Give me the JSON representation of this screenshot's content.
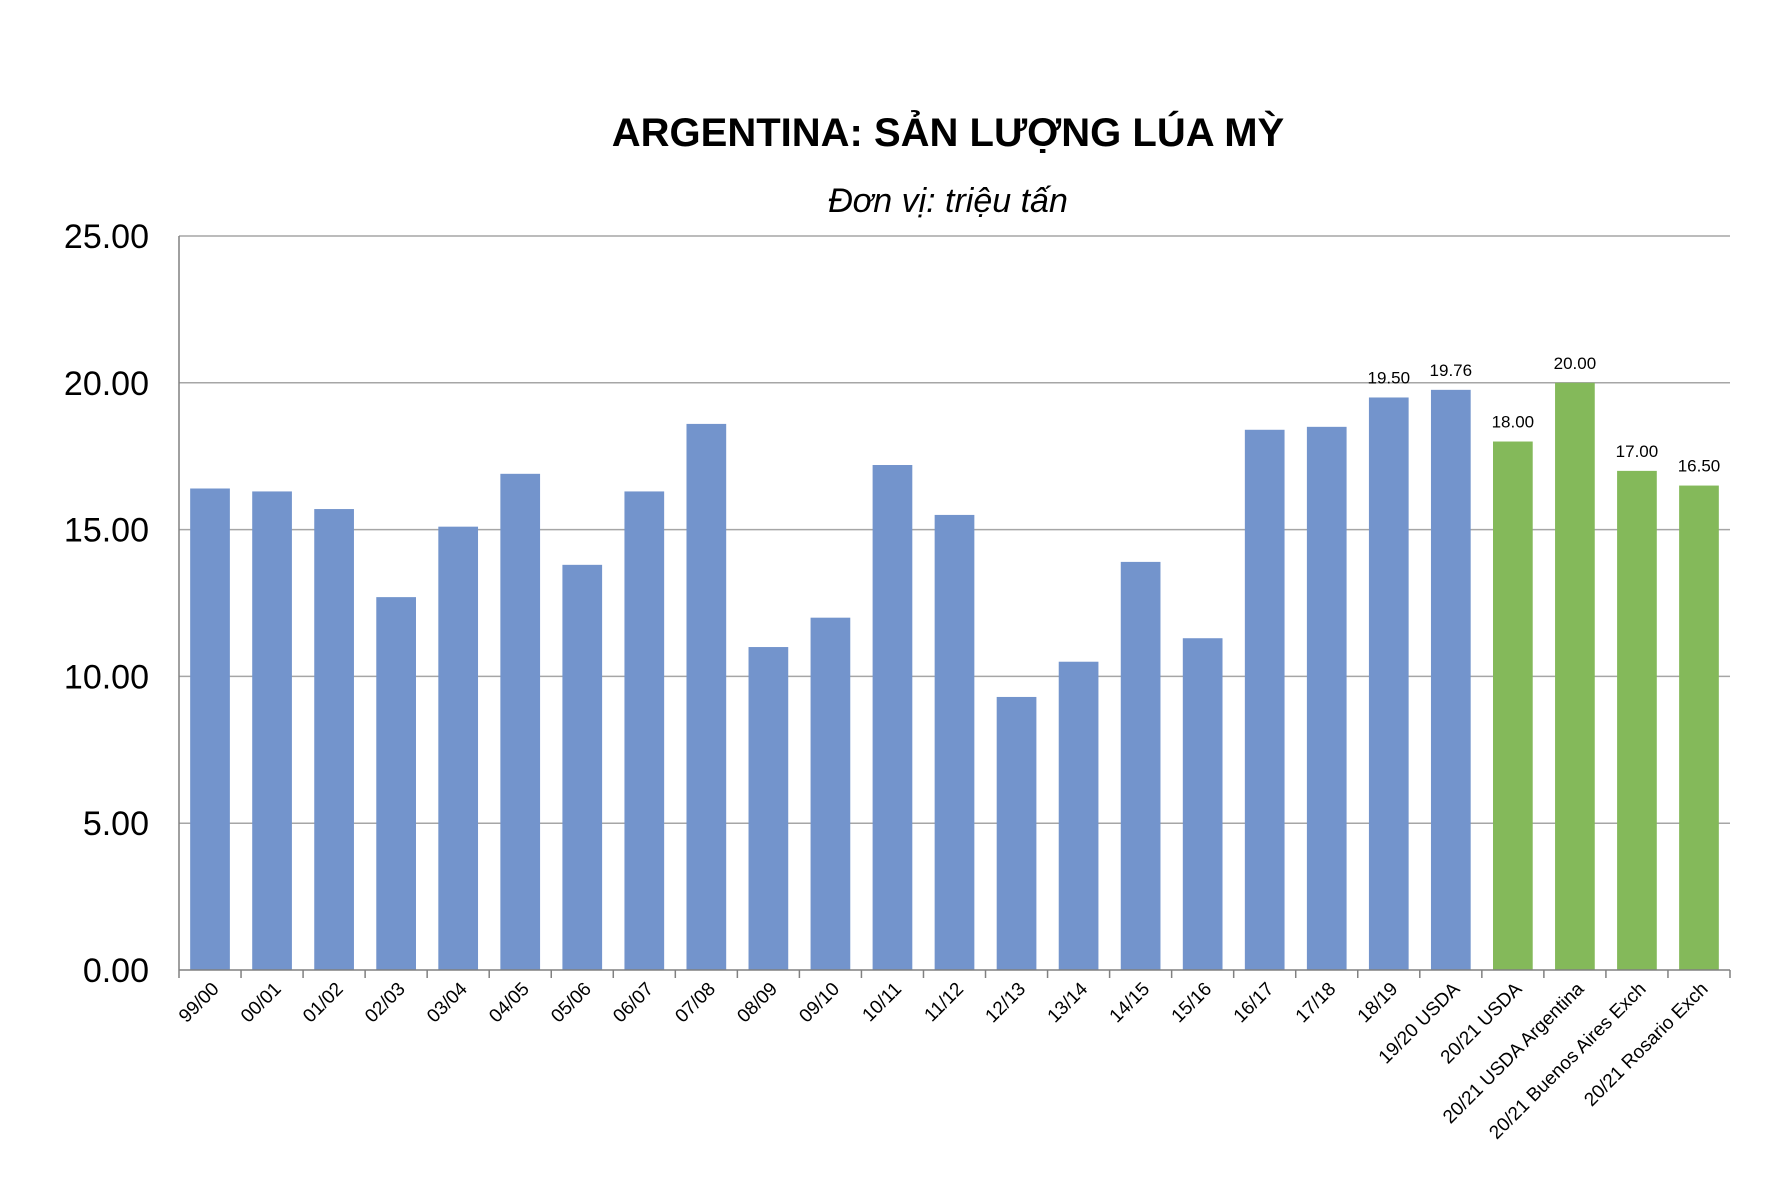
{
  "chart_data": {
    "type": "bar",
    "title": "ARGENTINA: SẢN LƯỢNG LÚA MỲ",
    "subtitle": "Đơn vị: triệu tấn",
    "ylim": [
      0,
      25
    ],
    "yticks": [
      "0.00",
      "5.00",
      "10.00",
      "15.00",
      "20.00",
      "25.00"
    ],
    "grid": true,
    "categories": [
      "99/00",
      "00/01",
      "01/02",
      "02/03",
      "03/04",
      "04/05",
      "05/06",
      "06/07",
      "07/08",
      "08/09",
      "09/10",
      "10/11",
      "11/12",
      "12/13",
      "13/14",
      "14/15",
      "15/16",
      "16/17",
      "17/18",
      "18/19",
      "19/20 USDA",
      "20/21 USDA",
      "20/21 USDA Argentina",
      "20/21 Buenos Aires Exch",
      "20/21 Rosario Exch"
    ],
    "values": [
      16.4,
      16.3,
      15.7,
      12.7,
      15.1,
      16.9,
      13.8,
      16.3,
      18.6,
      11.0,
      12.0,
      17.2,
      15.5,
      9.3,
      10.5,
      13.9,
      11.3,
      18.4,
      18.5,
      19.5,
      19.76,
      18.0,
      20.0,
      17.0,
      16.5
    ],
    "data_labels": [
      "",
      "",
      "",
      "",
      "",
      "",
      "",
      "",
      "",
      "",
      "",
      "",
      "",
      "",
      "",
      "",
      "",
      "",
      "",
      "19.50",
      "19.76",
      "18.00",
      "20.00",
      "17.00",
      "16.50"
    ],
    "bar_colors": [
      "#7394cc",
      "#7394cc",
      "#7394cc",
      "#7394cc",
      "#7394cc",
      "#7394cc",
      "#7394cc",
      "#7394cc",
      "#7394cc",
      "#7394cc",
      "#7394cc",
      "#7394cc",
      "#7394cc",
      "#7394cc",
      "#7394cc",
      "#7394cc",
      "#7394cc",
      "#7394cc",
      "#7394cc",
      "#7394cc",
      "#7394cc",
      "#84b95a",
      "#84b95a",
      "#84b95a",
      "#84b95a"
    ],
    "gridline_color": "#a6a6a6",
    "axis_color": "#808080"
  }
}
